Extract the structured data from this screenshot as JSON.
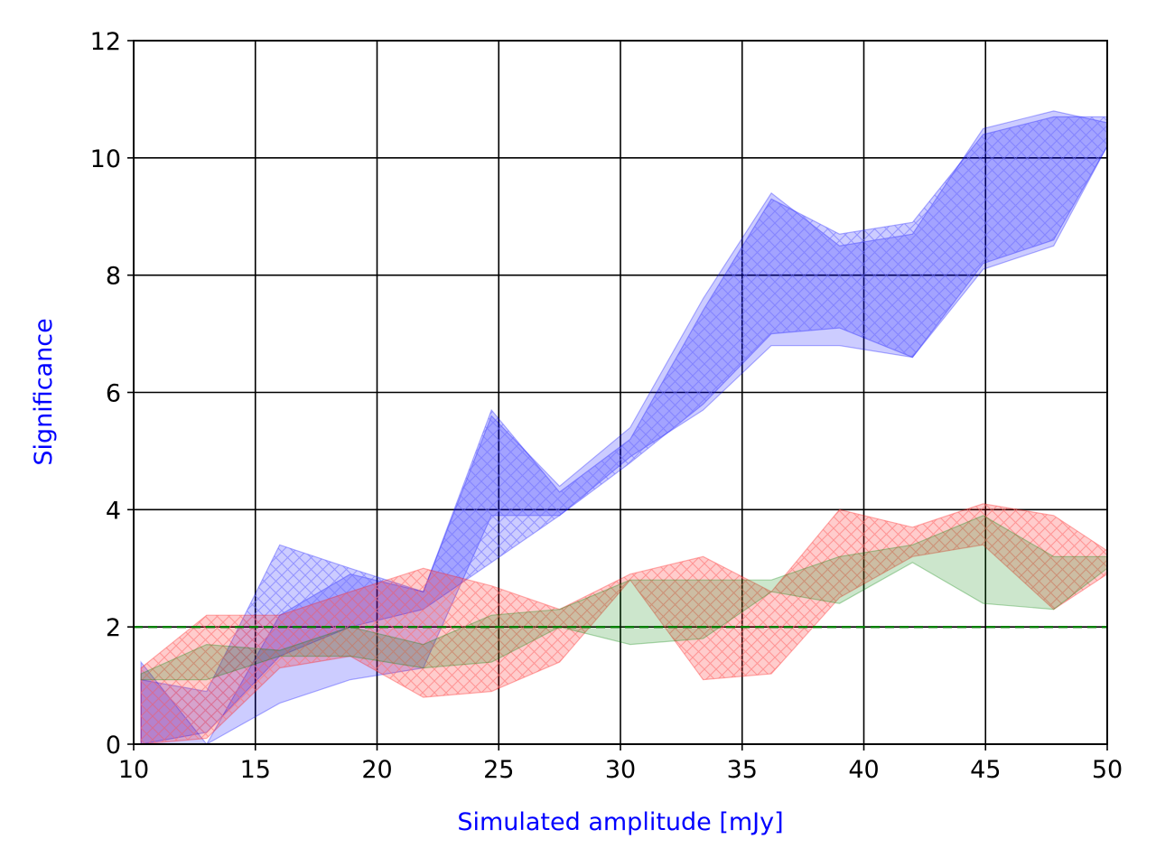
{
  "chart_data": {
    "type": "area",
    "title": "",
    "xlabel": "Simulated amplitude [mJy]",
    "ylabel": "Significance",
    "xlim": [
      10,
      50
    ],
    "ylim": [
      0,
      12
    ],
    "xticks": [
      10,
      15,
      20,
      25,
      30,
      35,
      40,
      45,
      50
    ],
    "yticks": [
      0,
      2,
      4,
      6,
      8,
      10,
      12
    ],
    "grid": true,
    "reference_line": {
      "y": 2.0,
      "style": "dashed",
      "color": "#008000"
    },
    "series": [
      {
        "color": "#0000ff",
        "hatch": false,
        "x": [
          10.3,
          13.0,
          16.0,
          18.9,
          21.9,
          24.7,
          27.5,
          30.4,
          33.4,
          36.2,
          39.0,
          42.0,
          44.9,
          47.8,
          50.0
        ],
        "upper": [
          1.4,
          0.0,
          2.2,
          2.9,
          2.6,
          5.6,
          4.4,
          5.4,
          7.6,
          9.4,
          8.5,
          8.7,
          10.5,
          10.8,
          10.6
        ],
        "lower": [
          0.0,
          0.0,
          0.7,
          1.1,
          1.3,
          3.9,
          3.9,
          4.9,
          5.7,
          6.8,
          6.8,
          6.6,
          8.1,
          8.5,
          10.2
        ]
      },
      {
        "color": "#0000ff",
        "hatch": true,
        "x": [
          10.3,
          13.0,
          16.0,
          18.9,
          21.9,
          24.7,
          27.5,
          30.4,
          33.4,
          36.2,
          39.0,
          42.0,
          44.9,
          47.8,
          50.0
        ],
        "upper": [
          1.1,
          0.9,
          3.4,
          3.0,
          2.6,
          5.7,
          4.3,
          5.2,
          7.4,
          9.3,
          8.7,
          8.9,
          10.4,
          10.7,
          10.7
        ],
        "lower": [
          0.0,
          0.2,
          1.5,
          2.0,
          2.3,
          3.1,
          3.9,
          4.8,
          5.8,
          7.0,
          7.1,
          6.6,
          8.2,
          8.6,
          10.2
        ]
      },
      {
        "color": "#ff0000",
        "hatch": true,
        "x": [
          10.3,
          13.0,
          16.0,
          18.9,
          21.9,
          24.7,
          27.5,
          30.4,
          33.4,
          36.2,
          39.0,
          42.0,
          44.9,
          47.8,
          50.0
        ],
        "upper": [
          1.3,
          2.2,
          2.2,
          2.6,
          3.0,
          2.7,
          2.3,
          2.9,
          3.2,
          2.6,
          4.0,
          3.7,
          4.1,
          3.9,
          3.3
        ],
        "lower": [
          0.0,
          0.1,
          1.3,
          1.5,
          0.8,
          0.9,
          1.4,
          2.8,
          1.1,
          1.2,
          2.5,
          3.2,
          3.4,
          2.3,
          2.9
        ]
      },
      {
        "color": "#008000",
        "hatch": false,
        "x": [
          10.3,
          13.0,
          16.0,
          18.9,
          21.9,
          24.7,
          27.5,
          30.4,
          33.4,
          36.2,
          39.0,
          42.0,
          44.9,
          47.8,
          50.0
        ],
        "upper": [
          1.2,
          1.7,
          1.6,
          2.0,
          1.7,
          2.2,
          2.3,
          2.8,
          2.8,
          2.8,
          3.2,
          3.4,
          3.9,
          3.2,
          3.2
        ],
        "lower": [
          1.1,
          1.1,
          1.5,
          1.5,
          1.3,
          1.4,
          2.0,
          1.7,
          1.8,
          2.6,
          2.4,
          3.1,
          2.4,
          2.3,
          3.0
        ]
      }
    ]
  }
}
